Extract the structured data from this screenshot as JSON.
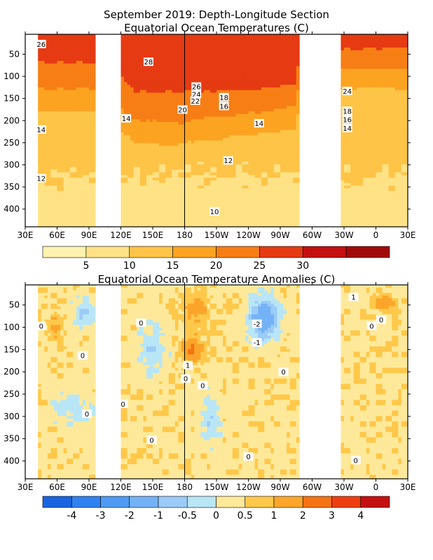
{
  "title_line1": "September 2019: Depth-Longitude Section",
  "chart_data": [
    {
      "type": "heatmap",
      "title": "Equatorial Ocean Temperatures (C)",
      "xlabel": "",
      "ylabel": "",
      "x_ticks": [
        "30E",
        "60E",
        "90E",
        "120E",
        "150E",
        "180",
        "150W",
        "120W",
        "90W",
        "60W",
        "30W",
        "0",
        "30E"
      ],
      "y_ticks": [
        "50",
        "100",
        "150",
        "200",
        "250",
        "300",
        "350",
        "400"
      ],
      "xlim": [
        30,
        390
      ],
      "ylim": [
        440,
        5
      ],
      "x_unit": "degrees east",
      "y_unit": "m depth",
      "missing_longitude_bands": [
        [
          5,
          42
        ],
        [
          96,
          118
        ],
        [
          286,
          325
        ],
        [
          413,
          448
        ]
      ],
      "colorbar": {
        "labels": [
          "5",
          "10",
          "15",
          "20",
          "25",
          "30"
        ],
        "bounds": [
          2.5,
          5,
          10,
          15,
          20,
          25,
          30,
          35
        ],
        "colors": [
          "#fff2ae",
          "#fee285",
          "#fec447",
          "#fca321",
          "#f77e15",
          "#e53a12",
          "#c41010",
          "#a10a0a"
        ]
      },
      "contour_labels": [
        {
          "text": "26",
          "lon": 45,
          "depth": 27
        },
        {
          "text": "28",
          "lon": 146,
          "depth": 67
        },
        {
          "text": "26",
          "lon": 191,
          "depth": 123
        },
        {
          "text": "24",
          "lon": 191,
          "depth": 140
        },
        {
          "text": "22",
          "lon": 190,
          "depth": 155
        },
        {
          "text": "20",
          "lon": 178,
          "depth": 175
        },
        {
          "text": "18",
          "lon": 217,
          "depth": 147
        },
        {
          "text": "16",
          "lon": 217,
          "depth": 167
        },
        {
          "text": "14",
          "lon": 250,
          "depth": 206
        },
        {
          "text": "14",
          "lon": 125,
          "depth": 195
        },
        {
          "text": "14",
          "lon": 45,
          "depth": 220
        },
        {
          "text": "12",
          "lon": 221,
          "depth": 290
        },
        {
          "text": "12",
          "lon": 45,
          "depth": 330
        },
        {
          "text": "10",
          "lon": 208,
          "depth": 405
        },
        {
          "text": "24",
          "lon": 333,
          "depth": 133
        },
        {
          "text": "18",
          "lon": 333,
          "depth": 178
        },
        {
          "text": "16",
          "lon": 333,
          "depth": 197
        },
        {
          "text": "14",
          "lon": 333,
          "depth": 217
        }
      ]
    },
    {
      "type": "heatmap",
      "title": "Equatorial Ocean Temperature Anomalies (C)",
      "xlabel": "",
      "ylabel": "",
      "x_ticks": [
        "30E",
        "60E",
        "90E",
        "120E",
        "150E",
        "180",
        "150W",
        "120W",
        "90W",
        "60W",
        "30W",
        "0",
        "30E"
      ],
      "y_ticks": [
        "50",
        "100",
        "150",
        "200",
        "250",
        "300",
        "350",
        "400"
      ],
      "xlim": [
        30,
        390
      ],
      "ylim": [
        440,
        5
      ],
      "x_unit": "degrees east",
      "y_unit": "m depth",
      "missing_longitude_bands": [
        [
          5,
          42
        ],
        [
          96,
          118
        ],
        [
          286,
          325
        ],
        [
          413,
          448
        ]
      ],
      "colorbar": {
        "labels": [
          "-4",
          "-3",
          "-2",
          "-1",
          "-0.5",
          "0",
          "0.5",
          "1",
          "2",
          "3",
          "4"
        ],
        "bounds": [
          -5,
          -4,
          -3,
          -2,
          -1,
          -0.5,
          0,
          0.5,
          1,
          2,
          3,
          4,
          5
        ],
        "colors": [
          "#1a64e0",
          "#2f82ef",
          "#4f9bf4",
          "#74b2f6",
          "#9bcbf8",
          "#b9e6f6",
          "#fee99a",
          "#fec84a",
          "#fba52a",
          "#f57314",
          "#ee3e10",
          "#c41010"
        ]
      },
      "contour_labels": [
        {
          "text": "0",
          "lon": 45,
          "depth": 97
        },
        {
          "text": "0",
          "lon": 84,
          "depth": 163
        },
        {
          "text": "0",
          "lon": 139,
          "depth": 90
        },
        {
          "text": "0",
          "lon": 122,
          "depth": 272
        },
        {
          "text": "0",
          "lon": 88,
          "depth": 294
        },
        {
          "text": "0",
          "lon": 149,
          "depth": 353
        },
        {
          "text": "0",
          "lon": 181,
          "depth": 215
        },
        {
          "text": "0",
          "lon": 197,
          "depth": 230
        },
        {
          "text": "-2",
          "lon": 248,
          "depth": 92
        },
        {
          "text": "-1",
          "lon": 248,
          "depth": 134
        },
        {
          "text": "1",
          "lon": 183,
          "depth": 185
        },
        {
          "text": "0",
          "lon": 273,
          "depth": 200
        },
        {
          "text": "0",
          "lon": 240,
          "depth": 390
        },
        {
          "text": "1",
          "lon": 339,
          "depth": 32
        },
        {
          "text": "0",
          "lon": 356,
          "depth": 97
        },
        {
          "text": "0",
          "lon": 365,
          "depth": 83
        },
        {
          "text": "0",
          "lon": 341,
          "depth": 398
        }
      ]
    }
  ]
}
